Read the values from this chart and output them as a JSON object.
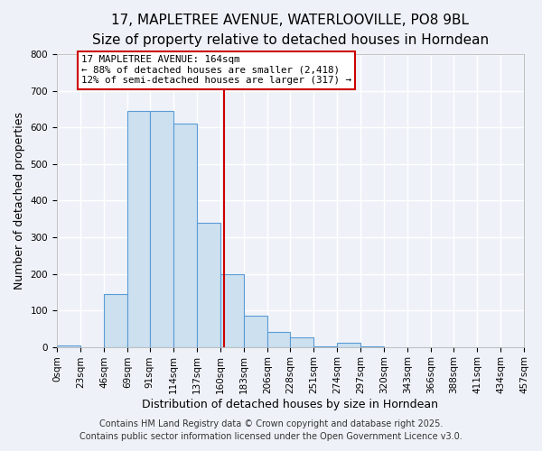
{
  "title": "17, MAPLETREE AVENUE, WATERLOOVILLE, PO8 9BL",
  "subtitle": "Size of property relative to detached houses in Horndean",
  "xlabel": "Distribution of detached houses by size in Horndean",
  "ylabel": "Number of detached properties",
  "bar_edges": [
    0,
    23,
    46,
    69,
    91,
    114,
    137,
    160,
    183,
    206,
    228,
    251,
    274,
    297,
    320,
    343,
    366,
    388,
    411,
    434,
    457
  ],
  "bar_heights": [
    5,
    0,
    145,
    645,
    645,
    610,
    340,
    200,
    85,
    42,
    27,
    2,
    12,
    2,
    0,
    0,
    0,
    0,
    0,
    0
  ],
  "bar_color": "#cce0f0",
  "bar_edge_color": "#5b9bd5",
  "vline_x": 164,
  "vline_color": "#cc0000",
  "annotation_title": "17 MAPLETREE AVENUE: 164sqm",
  "annotation_line1": "← 88% of detached houses are smaller (2,418)",
  "annotation_line2": "12% of semi-detached houses are larger (317) →",
  "annotation_box_color": "#ffffff",
  "annotation_box_edge": "#cc0000",
  "tick_labels": [
    "0sqm",
    "23sqm",
    "46sqm",
    "69sqm",
    "91sqm",
    "114sqm",
    "137sqm",
    "160sqm",
    "183sqm",
    "206sqm",
    "228sqm",
    "251sqm",
    "274sqm",
    "297sqm",
    "320sqm",
    "343sqm",
    "366sqm",
    "388sqm",
    "411sqm",
    "434sqm",
    "457sqm"
  ],
  "ylim": [
    0,
    800
  ],
  "xlim": [
    0,
    457
  ],
  "yticks": [
    0,
    100,
    200,
    300,
    400,
    500,
    600,
    700,
    800
  ],
  "background_color": "#eef2f8",
  "grid_color": "#ffffff",
  "footer1": "Contains HM Land Registry data © Crown copyright and database right 2025.",
  "footer2": "Contains public sector information licensed under the Open Government Licence v3.0.",
  "title_fontsize": 11,
  "subtitle_fontsize": 9.5,
  "axis_label_fontsize": 9,
  "tick_fontsize": 7.5,
  "footer_fontsize": 7
}
